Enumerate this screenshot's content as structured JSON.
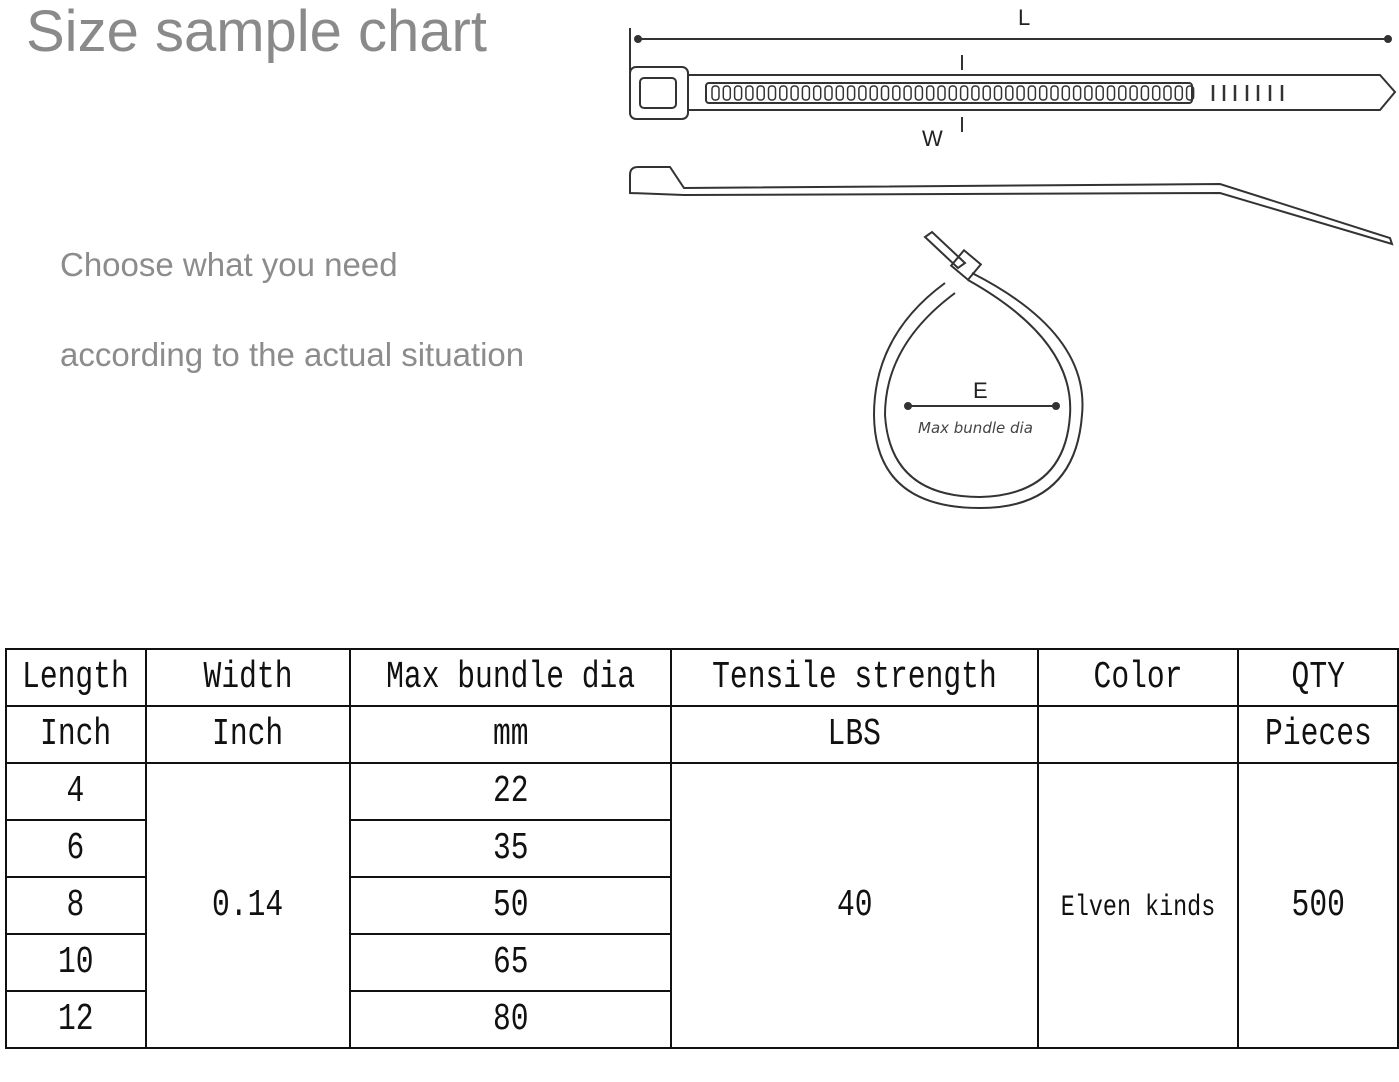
{
  "title": "Size sample chart",
  "subtitle_lines": [
    "Choose what you need",
    "according to the actual situation"
  ],
  "diagram": {
    "length_label": "L",
    "width_label": "W",
    "diameter_label": "E",
    "diameter_caption": "Max bundle dia"
  },
  "table": {
    "headers": [
      "Length",
      "Width",
      "Max bundle dia",
      "Tensile strength",
      "Color",
      "QTY"
    ],
    "units": [
      "Inch",
      "Inch",
      "mm",
      "LBS",
      "",
      "Pieces"
    ],
    "lengths": [
      "4",
      "6",
      "8",
      "10",
      "12"
    ],
    "width": "0.14",
    "max_bundle_dia": [
      "22",
      "35",
      "50",
      "65",
      "80"
    ],
    "tensile_strength": "40",
    "color": "Elven kinds",
    "qty": "500"
  }
}
